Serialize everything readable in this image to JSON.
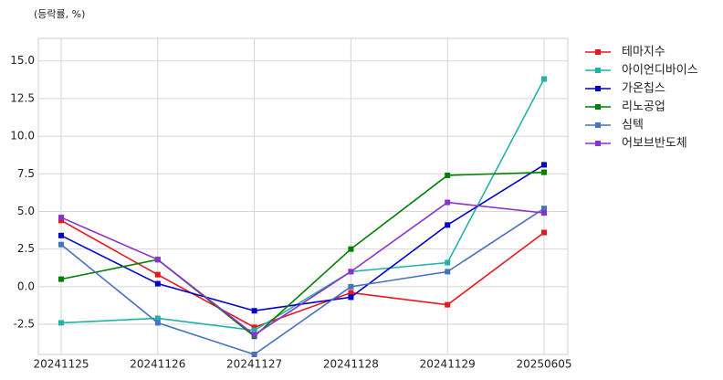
{
  "chart_data": {
    "type": "line",
    "title": "(등락률, %)",
    "categories": [
      "20241125",
      "20241126",
      "20241127",
      "20241128",
      "20241129",
      "20250605"
    ],
    "series": [
      {
        "name": "테마지수",
        "color": "#e8171b",
        "values": [
          4.4,
          0.8,
          -2.7,
          -0.4,
          -1.2,
          3.6
        ]
      },
      {
        "name": "아이언디바이스",
        "color": "#22b2aa",
        "values": [
          -2.4,
          -2.1,
          -2.9,
          1.0,
          1.6,
          13.8
        ]
      },
      {
        "name": "가온칩스",
        "color": "#0000cd",
        "values": [
          3.4,
          0.2,
          -1.6,
          -0.7,
          4.1,
          8.1
        ]
      },
      {
        "name": "리노공업",
        "color": "#007f00",
        "values": [
          0.5,
          1.8,
          -3.3,
          2.5,
          7.4,
          7.6
        ]
      },
      {
        "name": "심텍",
        "color": "#4472c4",
        "values": [
          2.8,
          -2.4,
          -4.5,
          0.0,
          1.0,
          5.2
        ]
      },
      {
        "name": "어보브반도체",
        "color": "#8b32cc",
        "values": [
          4.6,
          1.8,
          -3.2,
          1.0,
          5.6,
          4.9
        ]
      }
    ],
    "ylim": [
      -4.5,
      16.5
    ],
    "yticks": [
      -2.5,
      {
        "value": 0,
        "label": "0.0"
      },
      2.5,
      {
        "value": 5,
        "label": "5.0"
      },
      7.5,
      {
        "value": 10,
        "label": "10.0"
      },
      12.5,
      {
        "value": 15,
        "label": "15.0"
      }
    ],
    "grid": true,
    "legend": "right"
  }
}
